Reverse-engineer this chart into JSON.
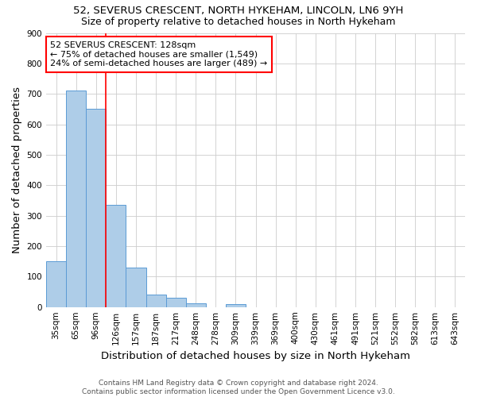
{
  "title1": "52, SEVERUS CRESCENT, NORTH HYKEHAM, LINCOLN, LN6 9YH",
  "title2": "Size of property relative to detached houses in North Hykeham",
  "xlabel": "Distribution of detached houses by size in North Hykeham",
  "ylabel": "Number of detached properties",
  "footer1": "Contains HM Land Registry data © Crown copyright and database right 2024.",
  "footer2": "Contains public sector information licensed under the Open Government Licence v3.0.",
  "bins": [
    "35sqm",
    "65sqm",
    "96sqm",
    "126sqm",
    "157sqm",
    "187sqm",
    "217sqm",
    "248sqm",
    "278sqm",
    "309sqm",
    "339sqm",
    "369sqm",
    "400sqm",
    "430sqm",
    "461sqm",
    "491sqm",
    "521sqm",
    "552sqm",
    "582sqm",
    "613sqm",
    "643sqm"
  ],
  "values": [
    150,
    710,
    650,
    335,
    130,
    42,
    30,
    12,
    0,
    9,
    0,
    0,
    0,
    0,
    0,
    0,
    0,
    0,
    0,
    0,
    0
  ],
  "bar_color": "#aecde8",
  "bar_edge_color": "#5b9bd5",
  "vline_color": "red",
  "vline_x_index": 3,
  "annotation_text": "52 SEVERUS CRESCENT: 128sqm\n← 75% of detached houses are smaller (1,549)\n24% of semi-detached houses are larger (489) →",
  "annotation_box_color": "white",
  "annotation_box_edge_color": "red",
  "ylim": [
    0,
    900
  ],
  "yticks": [
    0,
    100,
    200,
    300,
    400,
    500,
    600,
    700,
    800,
    900
  ],
  "grid_color": "#cccccc",
  "background_color": "white",
  "title_fontsize": 9.5,
  "subtitle_fontsize": 9,
  "axis_label_fontsize": 9.5,
  "tick_fontsize": 7.5,
  "annotation_fontsize": 8,
  "footer_fontsize": 6.5
}
